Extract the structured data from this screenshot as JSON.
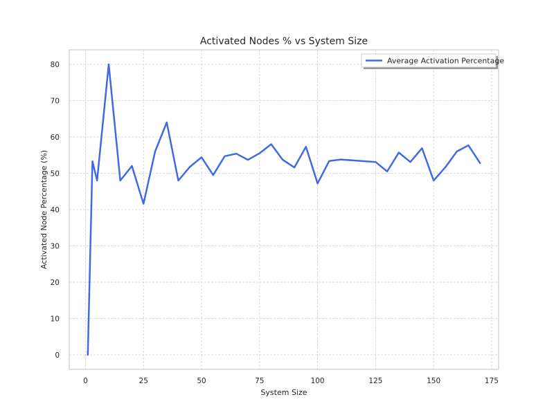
{
  "chart_data": {
    "type": "line",
    "title": "Activated Nodes % vs System Size",
    "xlabel": "System Size",
    "ylabel": "Activated Node Percentage (%)",
    "xlim": [
      -7,
      178
    ],
    "ylim": [
      -4,
      84
    ],
    "xticks": [
      0,
      25,
      50,
      75,
      100,
      125,
      150,
      175
    ],
    "yticks": [
      0,
      10,
      20,
      30,
      40,
      50,
      60,
      70,
      80
    ],
    "grid": true,
    "legend_position": "top-right",
    "series": [
      {
        "name": "Average Activation Percentage",
        "color": "#4169e1",
        "x": [
          1,
          3,
          5,
          10,
          15,
          20,
          25,
          30,
          35,
          40,
          45,
          50,
          55,
          60,
          65,
          70,
          75,
          80,
          85,
          90,
          95,
          100,
          105,
          110,
          125,
          130,
          135,
          140,
          145,
          150,
          155,
          160,
          165,
          170
        ],
        "y": [
          0,
          53.3,
          48,
          80,
          48,
          52,
          41.6,
          56,
          64,
          48,
          51.8,
          54.4,
          49.5,
          54.7,
          55.4,
          53.7,
          55.5,
          58,
          53.7,
          51.6,
          57.3,
          47.2,
          53.4,
          53.8,
          53.1,
          50.5,
          55.7,
          53.1,
          56.9,
          48,
          51.6,
          56,
          57.7,
          52.8
        ]
      }
    ]
  }
}
